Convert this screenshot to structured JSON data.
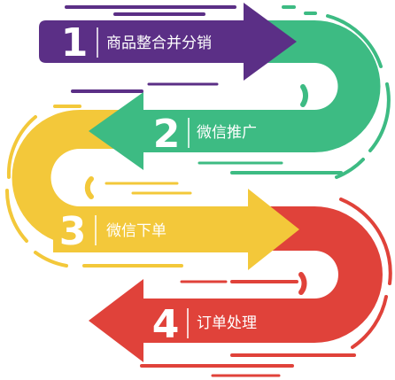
{
  "steps": [
    {
      "number": "1",
      "label": "商品整合并分销",
      "color": "#5b2f86"
    },
    {
      "number": "2",
      "label": "微信推广",
      "color": "#3dbb83"
    },
    {
      "number": "3",
      "label": "微信下单",
      "color": "#f3c83a"
    },
    {
      "number": "4",
      "label": "订单处理",
      "color": "#e0423a"
    }
  ]
}
